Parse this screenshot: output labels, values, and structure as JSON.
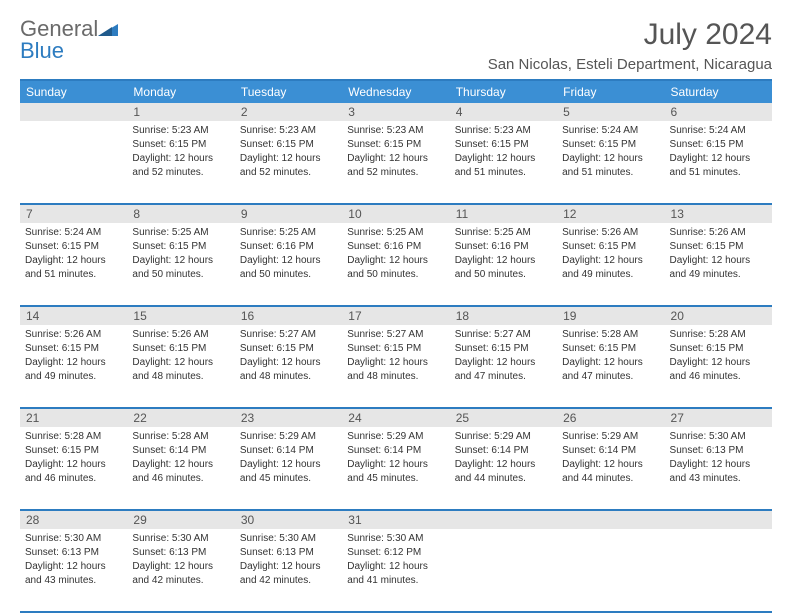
{
  "logo": {
    "general": "General",
    "blue": "Blue"
  },
  "title": "July 2024",
  "location": "San Nicolas, Esteli Department, Nicaragua",
  "weekday_header_bg": "#3b8fd4",
  "weekday_header_color": "#ffffff",
  "border_color": "#2d7cc0",
  "daynum_bg": "#e6e6e6",
  "weekdays": [
    "Sunday",
    "Monday",
    "Tuesday",
    "Wednesday",
    "Thursday",
    "Friday",
    "Saturday"
  ],
  "weeks": [
    [
      {
        "num": "",
        "lines": []
      },
      {
        "num": "1",
        "lines": [
          "Sunrise: 5:23 AM",
          "Sunset: 6:15 PM",
          "Daylight: 12 hours",
          "and 52 minutes."
        ]
      },
      {
        "num": "2",
        "lines": [
          "Sunrise: 5:23 AM",
          "Sunset: 6:15 PM",
          "Daylight: 12 hours",
          "and 52 minutes."
        ]
      },
      {
        "num": "3",
        "lines": [
          "Sunrise: 5:23 AM",
          "Sunset: 6:15 PM",
          "Daylight: 12 hours",
          "and 52 minutes."
        ]
      },
      {
        "num": "4",
        "lines": [
          "Sunrise: 5:23 AM",
          "Sunset: 6:15 PM",
          "Daylight: 12 hours",
          "and 51 minutes."
        ]
      },
      {
        "num": "5",
        "lines": [
          "Sunrise: 5:24 AM",
          "Sunset: 6:15 PM",
          "Daylight: 12 hours",
          "and 51 minutes."
        ]
      },
      {
        "num": "6",
        "lines": [
          "Sunrise: 5:24 AM",
          "Sunset: 6:15 PM",
          "Daylight: 12 hours",
          "and 51 minutes."
        ]
      }
    ],
    [
      {
        "num": "7",
        "lines": [
          "Sunrise: 5:24 AM",
          "Sunset: 6:15 PM",
          "Daylight: 12 hours",
          "and 51 minutes."
        ]
      },
      {
        "num": "8",
        "lines": [
          "Sunrise: 5:25 AM",
          "Sunset: 6:15 PM",
          "Daylight: 12 hours",
          "and 50 minutes."
        ]
      },
      {
        "num": "9",
        "lines": [
          "Sunrise: 5:25 AM",
          "Sunset: 6:16 PM",
          "Daylight: 12 hours",
          "and 50 minutes."
        ]
      },
      {
        "num": "10",
        "lines": [
          "Sunrise: 5:25 AM",
          "Sunset: 6:16 PM",
          "Daylight: 12 hours",
          "and 50 minutes."
        ]
      },
      {
        "num": "11",
        "lines": [
          "Sunrise: 5:25 AM",
          "Sunset: 6:16 PM",
          "Daylight: 12 hours",
          "and 50 minutes."
        ]
      },
      {
        "num": "12",
        "lines": [
          "Sunrise: 5:26 AM",
          "Sunset: 6:15 PM",
          "Daylight: 12 hours",
          "and 49 minutes."
        ]
      },
      {
        "num": "13",
        "lines": [
          "Sunrise: 5:26 AM",
          "Sunset: 6:15 PM",
          "Daylight: 12 hours",
          "and 49 minutes."
        ]
      }
    ],
    [
      {
        "num": "14",
        "lines": [
          "Sunrise: 5:26 AM",
          "Sunset: 6:15 PM",
          "Daylight: 12 hours",
          "and 49 minutes."
        ]
      },
      {
        "num": "15",
        "lines": [
          "Sunrise: 5:26 AM",
          "Sunset: 6:15 PM",
          "Daylight: 12 hours",
          "and 48 minutes."
        ]
      },
      {
        "num": "16",
        "lines": [
          "Sunrise: 5:27 AM",
          "Sunset: 6:15 PM",
          "Daylight: 12 hours",
          "and 48 minutes."
        ]
      },
      {
        "num": "17",
        "lines": [
          "Sunrise: 5:27 AM",
          "Sunset: 6:15 PM",
          "Daylight: 12 hours",
          "and 48 minutes."
        ]
      },
      {
        "num": "18",
        "lines": [
          "Sunrise: 5:27 AM",
          "Sunset: 6:15 PM",
          "Daylight: 12 hours",
          "and 47 minutes."
        ]
      },
      {
        "num": "19",
        "lines": [
          "Sunrise: 5:28 AM",
          "Sunset: 6:15 PM",
          "Daylight: 12 hours",
          "and 47 minutes."
        ]
      },
      {
        "num": "20",
        "lines": [
          "Sunrise: 5:28 AM",
          "Sunset: 6:15 PM",
          "Daylight: 12 hours",
          "and 46 minutes."
        ]
      }
    ],
    [
      {
        "num": "21",
        "lines": [
          "Sunrise: 5:28 AM",
          "Sunset: 6:15 PM",
          "Daylight: 12 hours",
          "and 46 minutes."
        ]
      },
      {
        "num": "22",
        "lines": [
          "Sunrise: 5:28 AM",
          "Sunset: 6:14 PM",
          "Daylight: 12 hours",
          "and 46 minutes."
        ]
      },
      {
        "num": "23",
        "lines": [
          "Sunrise: 5:29 AM",
          "Sunset: 6:14 PM",
          "Daylight: 12 hours",
          "and 45 minutes."
        ]
      },
      {
        "num": "24",
        "lines": [
          "Sunrise: 5:29 AM",
          "Sunset: 6:14 PM",
          "Daylight: 12 hours",
          "and 45 minutes."
        ]
      },
      {
        "num": "25",
        "lines": [
          "Sunrise: 5:29 AM",
          "Sunset: 6:14 PM",
          "Daylight: 12 hours",
          "and 44 minutes."
        ]
      },
      {
        "num": "26",
        "lines": [
          "Sunrise: 5:29 AM",
          "Sunset: 6:14 PM",
          "Daylight: 12 hours",
          "and 44 minutes."
        ]
      },
      {
        "num": "27",
        "lines": [
          "Sunrise: 5:30 AM",
          "Sunset: 6:13 PM",
          "Daylight: 12 hours",
          "and 43 minutes."
        ]
      }
    ],
    [
      {
        "num": "28",
        "lines": [
          "Sunrise: 5:30 AM",
          "Sunset: 6:13 PM",
          "Daylight: 12 hours",
          "and 43 minutes."
        ]
      },
      {
        "num": "29",
        "lines": [
          "Sunrise: 5:30 AM",
          "Sunset: 6:13 PM",
          "Daylight: 12 hours",
          "and 42 minutes."
        ]
      },
      {
        "num": "30",
        "lines": [
          "Sunrise: 5:30 AM",
          "Sunset: 6:13 PM",
          "Daylight: 12 hours",
          "and 42 minutes."
        ]
      },
      {
        "num": "31",
        "lines": [
          "Sunrise: 5:30 AM",
          "Sunset: 6:12 PM",
          "Daylight: 12 hours",
          "and 41 minutes."
        ]
      },
      {
        "num": "",
        "lines": []
      },
      {
        "num": "",
        "lines": []
      },
      {
        "num": "",
        "lines": []
      }
    ]
  ]
}
